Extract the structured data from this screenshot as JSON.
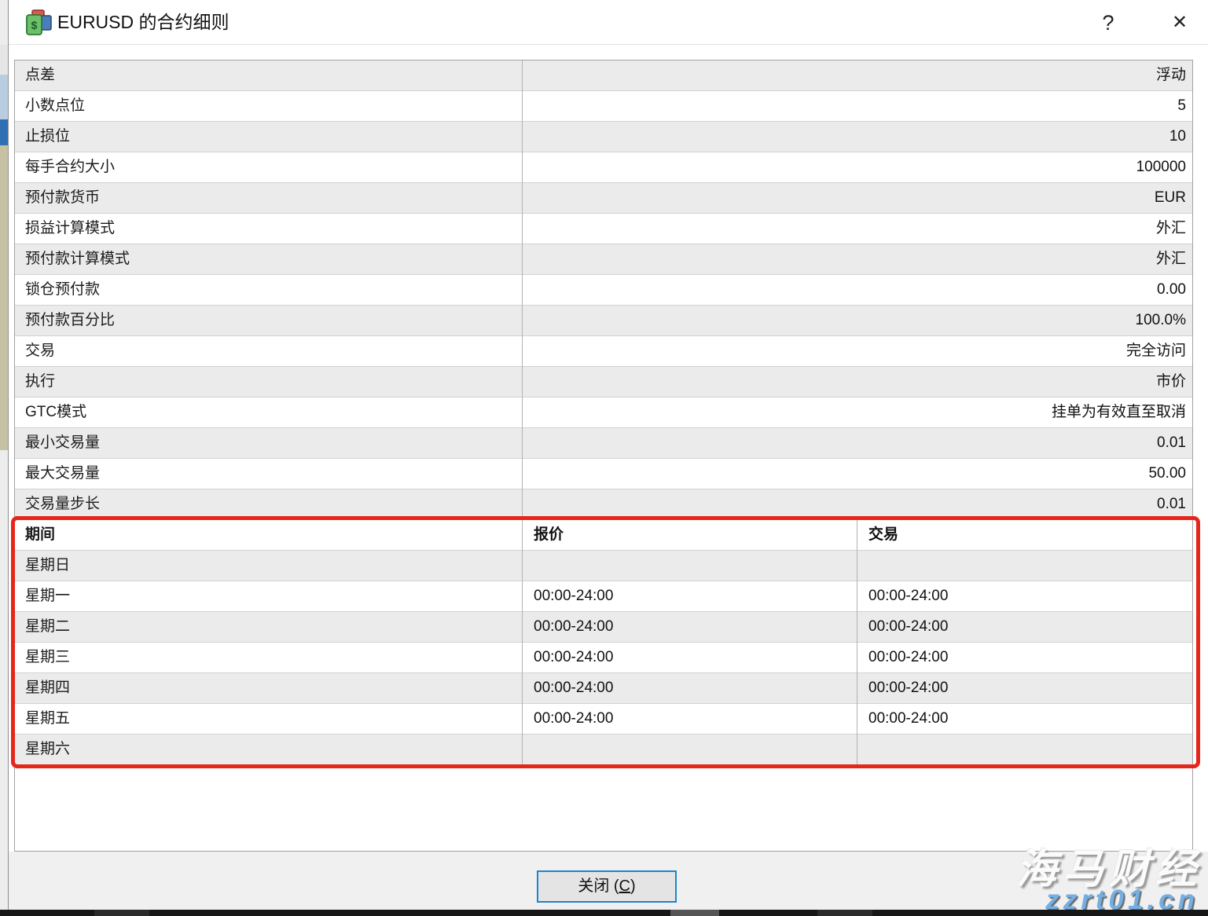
{
  "window": {
    "title": "EURUSD 的合约细则",
    "help_icon": "?",
    "close_icon": "✕"
  },
  "spec_table": {
    "rows": [
      {
        "label": "点差",
        "value": "浮动"
      },
      {
        "label": "小数点位",
        "value": "5"
      },
      {
        "label": "止损位",
        "value": "10"
      },
      {
        "label": "每手合约大小",
        "value": "100000"
      },
      {
        "label": "预付款货币",
        "value": "EUR"
      },
      {
        "label": "损益计算模式",
        "value": "外汇"
      },
      {
        "label": "预付款计算模式",
        "value": "外汇"
      },
      {
        "label": "锁仓预付款",
        "value": "0.00"
      },
      {
        "label": "预付款百分比",
        "value": "100.0%"
      },
      {
        "label": "交易",
        "value": "完全访问"
      },
      {
        "label": "执行",
        "value": "市价"
      },
      {
        "label": "GTC模式",
        "value": "挂单为有效直至取消"
      },
      {
        "label": "最小交易量",
        "value": "0.01"
      },
      {
        "label": "最大交易量",
        "value": "50.00"
      },
      {
        "label": "交易量步长",
        "value": "0.01"
      }
    ]
  },
  "schedule_table": {
    "headers": [
      "期间",
      "报价",
      "交易"
    ],
    "rows": [
      {
        "day": "星期日",
        "quotes": "",
        "trade": ""
      },
      {
        "day": "星期一",
        "quotes": "00:00-24:00",
        "trade": "00:00-24:00"
      },
      {
        "day": "星期二",
        "quotes": "00:00-24:00",
        "trade": "00:00-24:00"
      },
      {
        "day": "星期三",
        "quotes": "00:00-24:00",
        "trade": "00:00-24:00"
      },
      {
        "day": "星期四",
        "quotes": "00:00-24:00",
        "trade": "00:00-24:00"
      },
      {
        "day": "星期五",
        "quotes": "00:00-24:00",
        "trade": "00:00-24:00"
      },
      {
        "day": "星期六",
        "quotes": "",
        "trade": ""
      }
    ]
  },
  "footer": {
    "close_button_pre": "关闭 (",
    "close_button_key": "C",
    "close_button_post": ")"
  },
  "watermark": {
    "line1": "海马财经",
    "line2": "zzrt01.cn"
  },
  "colors": {
    "row_alt": "#ebebeb",
    "highlight_border": "#e7261b",
    "button_border": "#1a86d0"
  }
}
